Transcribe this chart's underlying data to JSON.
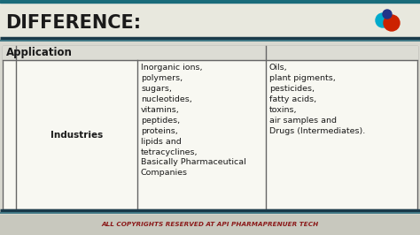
{
  "title": "DIFFERENCE:",
  "title_color": "#1a1a1a",
  "title_fontsize": 15,
  "bg_color": "#d8d8d0",
  "table_bg": "#f5f5ee",
  "table_border_color": "#666666",
  "title_bg_color": "#e8e8de",
  "top_stripe_color": "#1a6b7a",
  "footer_text": "ALL COPYRIGHTS RESERVED AT API PHARMAPRENUER TECH",
  "footer_color": "#8b1a1a",
  "footer_bg": "#c8c8be",
  "header_label": "Application",
  "col1_label": "Industries",
  "col2_text": "Inorganic ions,\npolymers,\nsugars,\nnucleotides,\nvitamins,\npeptides,\nproteins,\nlipids and\ntetracyclines,\nBasically Pharmaceutical\nCompanies",
  "col3_text": "Oils,\nplant pigments,\npesticides,\nfatty acids,\ntoxins,\nair samples and\nDrugs (Intermediates).",
  "cell_text_color": "#1a1a1a",
  "cell_fontsize": 6.8,
  "header_fontsize": 8.5,
  "logo_blue_color": "#00aacc",
  "logo_red_color": "#cc2200",
  "logo_darkblue_color": "#223388",
  "sep_color_dark": "#1a3a4a",
  "sep_color_mid": "#2a6a7a"
}
